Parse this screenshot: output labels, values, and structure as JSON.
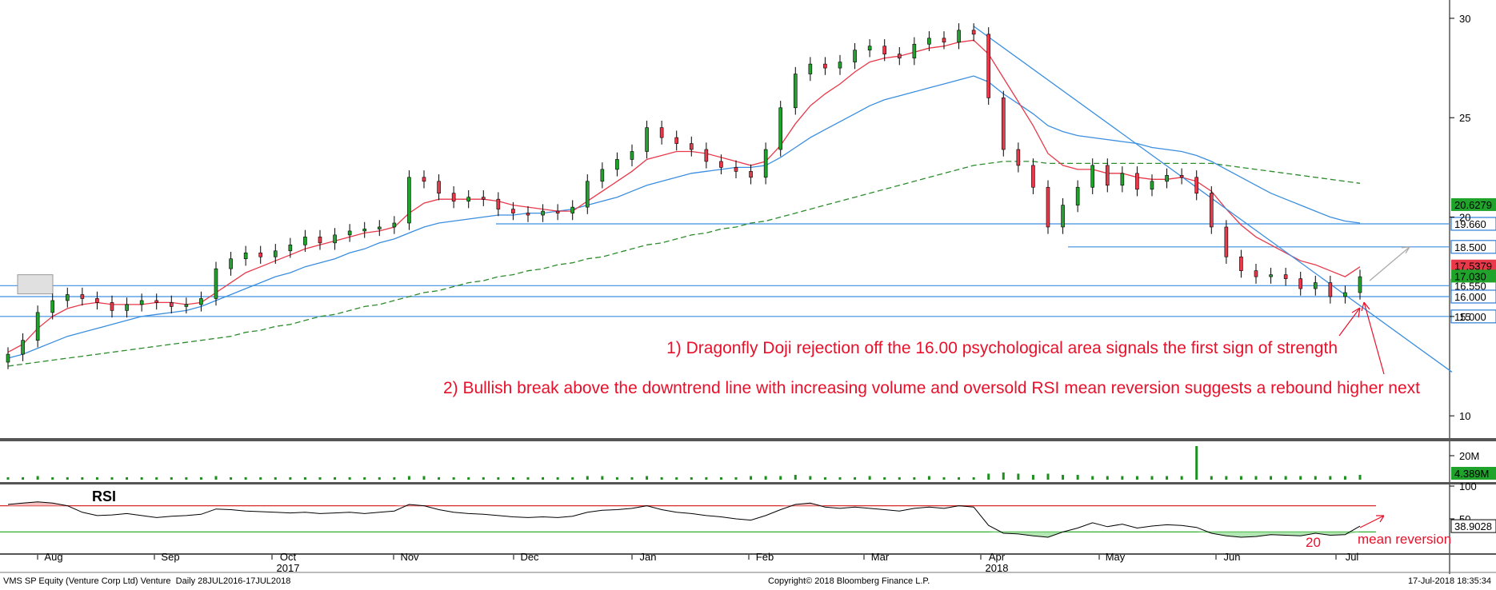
{
  "chart_data": {
    "type": "candlestick",
    "instrument": "VMS SP Equity (Venture Corp Ltd) Venture",
    "period_label": "Daily 28JUL2016-17JUL2018",
    "copyright": "Copyright© 2018 Bloomberg Finance L.P.",
    "timestamp": "17-Jul-2018 18:35:34",
    "x_labels": [
      "Aug",
      "Sep",
      "Oct",
      "Nov",
      "Dec",
      "Jan",
      "Feb",
      "Mar",
      "Apr",
      "May",
      "Jun",
      "Jul"
    ],
    "year_labels": [
      {
        "label": "2017",
        "month": "Oct"
      },
      {
        "label": "2018",
        "month": "Apr"
      }
    ],
    "price_axis": {
      "ticks": [
        10,
        15,
        20,
        25,
        30
      ],
      "range": [
        9,
        30.6
      ]
    },
    "price_close": [
      13.1,
      13.8,
      15.2,
      15.8,
      16.1,
      15.9,
      15.7,
      15.3,
      15.6,
      15.8,
      15.7,
      15.5,
      15.6,
      15.9,
      17.4,
      17.9,
      18.2,
      18.0,
      18.3,
      18.6,
      19.0,
      18.7,
      19.1,
      19.3,
      19.4,
      19.5,
      19.7,
      22.0,
      21.8,
      21.2,
      20.8,
      21.0,
      20.9,
      20.4,
      20.2,
      20.1,
      20.3,
      20.2,
      20.5,
      21.8,
      22.4,
      22.9,
      23.3,
      24.5,
      24.0,
      23.7,
      23.4,
      22.8,
      22.5,
      22.3,
      22.0,
      23.4,
      25.5,
      27.2,
      27.7,
      27.5,
      27.8,
      28.4,
      28.6,
      28.2,
      28.0,
      28.7,
      29.0,
      28.8,
      29.4,
      29.2,
      26.0,
      23.4,
      22.6,
      21.5,
      19.5,
      20.6,
      21.5,
      22.6,
      21.6,
      22.2,
      21.4,
      21.8,
      22.1,
      22.0,
      21.2,
      19.5,
      18.0,
      17.3,
      17.0,
      17.1,
      16.9,
      16.4,
      16.7,
      16.0,
      16.2,
      17.0
    ],
    "price_open": [
      12.7,
      13.1,
      13.8,
      15.2,
      15.8,
      16.1,
      15.9,
      15.7,
      15.3,
      15.6,
      15.8,
      15.7,
      15.5,
      15.6,
      15.9,
      17.4,
      17.9,
      18.2,
      18.0,
      18.3,
      18.6,
      19.0,
      18.7,
      19.1,
      19.3,
      19.4,
      19.5,
      19.7,
      22.0,
      21.8,
      21.2,
      20.8,
      21.0,
      20.9,
      20.4,
      20.2,
      20.1,
      20.3,
      20.2,
      20.5,
      21.8,
      22.4,
      22.9,
      23.3,
      24.5,
      24.0,
      23.7,
      23.4,
      22.8,
      22.5,
      22.3,
      22.0,
      23.4,
      25.5,
      27.2,
      27.7,
      27.5,
      27.8,
      28.4,
      28.6,
      28.2,
      28.0,
      28.7,
      29.0,
      28.8,
      29.4,
      29.2,
      26.0,
      23.4,
      22.6,
      21.5,
      19.5,
      20.6,
      21.5,
      22.6,
      21.6,
      22.2,
      21.4,
      21.8,
      22.1,
      22.0,
      21.2,
      19.5,
      18.0,
      17.3,
      17.0,
      17.1,
      16.9,
      16.4,
      16.7,
      16.0,
      16.2
    ],
    "sma_fast": [
      13.2,
      13.6,
      14.4,
      15.0,
      15.4,
      15.6,
      15.7,
      15.6,
      15.6,
      15.6,
      15.7,
      15.7,
      15.6,
      15.7,
      16.2,
      16.7,
      17.2,
      17.5,
      17.8,
      18.1,
      18.4,
      18.6,
      18.8,
      19.0,
      19.2,
      19.3,
      19.5,
      20.2,
      20.7,
      20.9,
      20.9,
      20.9,
      20.9,
      20.8,
      20.6,
      20.5,
      20.4,
      20.3,
      20.3,
      20.8,
      21.3,
      21.8,
      22.3,
      22.9,
      23.1,
      23.3,
      23.3,
      23.2,
      23.0,
      22.8,
      22.6,
      22.8,
      23.6,
      24.7,
      25.6,
      26.2,
      26.7,
      27.3,
      27.8,
      28.0,
      28.1,
      28.3,
      28.5,
      28.6,
      28.8,
      28.9,
      28.2,
      27.0,
      25.8,
      24.6,
      23.2,
      22.6,
      22.4,
      22.4,
      22.2,
      22.2,
      22.0,
      21.9,
      21.9,
      22.0,
      21.8,
      21.3,
      20.4,
      19.6,
      19.0,
      18.6,
      18.2,
      17.8,
      17.6,
      17.3,
      17.0,
      17.5
    ],
    "sma_mid": [
      12.9,
      13.1,
      13.4,
      13.7,
      14.0,
      14.2,
      14.4,
      14.6,
      14.8,
      15.0,
      15.1,
      15.2,
      15.3,
      15.5,
      15.8,
      16.1,
      16.4,
      16.7,
      17.0,
      17.2,
      17.5,
      17.7,
      17.9,
      18.2,
      18.4,
      18.7,
      18.9,
      19.2,
      19.5,
      19.7,
      19.8,
      19.9,
      20.0,
      20.1,
      20.1,
      20.2,
      20.2,
      20.3,
      20.4,
      20.6,
      20.8,
      21.0,
      21.3,
      21.6,
      21.8,
      22.0,
      22.2,
      22.3,
      22.4,
      22.5,
      22.5,
      22.6,
      23.0,
      23.5,
      24.0,
      24.4,
      24.8,
      25.2,
      25.6,
      25.9,
      26.1,
      26.3,
      26.5,
      26.7,
      26.9,
      27.1,
      26.8,
      26.2,
      25.7,
      25.2,
      24.6,
      24.3,
      24.1,
      24.0,
      23.9,
      23.8,
      23.7,
      23.5,
      23.4,
      23.3,
      23.1,
      22.8,
      22.4,
      22.0,
      21.6,
      21.2,
      20.9,
      20.6,
      20.3,
      20.0,
      19.8,
      19.7
    ],
    "sma_slow": [
      12.5,
      12.6,
      12.7,
      12.8,
      12.9,
      13.0,
      13.1,
      13.2,
      13.3,
      13.4,
      13.5,
      13.6,
      13.7,
      13.8,
      13.9,
      14.0,
      14.2,
      14.3,
      14.5,
      14.6,
      14.8,
      15.0,
      15.1,
      15.3,
      15.5,
      15.6,
      15.8,
      16.0,
      16.2,
      16.3,
      16.5,
      16.7,
      16.8,
      17.0,
      17.1,
      17.3,
      17.4,
      17.6,
      17.7,
      17.9,
      18.0,
      18.2,
      18.4,
      18.6,
      18.7,
      18.9,
      19.1,
      19.2,
      19.4,
      19.5,
      19.7,
      19.8,
      20.0,
      20.2,
      20.4,
      20.6,
      20.8,
      21.0,
      21.2,
      21.4,
      21.6,
      21.8,
      22.0,
      22.2,
      22.4,
      22.6,
      22.7,
      22.8,
      22.8,
      22.8,
      22.7,
      22.7,
      22.7,
      22.7,
      22.7,
      22.7,
      22.7,
      22.7,
      22.7,
      22.7,
      22.7,
      22.7,
      22.6,
      22.5,
      22.4,
      22.3,
      22.2,
      22.1,
      22.0,
      21.9,
      21.8,
      21.7
    ],
    "horizontal_levels": [
      {
        "value": 19.66,
        "label": "19.660"
      },
      {
        "value": 18.5,
        "label": "18.500"
      },
      {
        "value": 16.55,
        "label": "16.550"
      },
      {
        "value": 16.0,
        "label": "16.000"
      },
      {
        "value": 15.0,
        "label": "15.000"
      }
    ],
    "price_tags": [
      {
        "value": 20.6279,
        "label": "20.6279",
        "color": "#1fa32b"
      },
      {
        "value": 17.5379,
        "label": "17.5379",
        "color": "#e8394a"
      },
      {
        "value": 17.03,
        "label": "17.030",
        "color": "#1fa32b"
      }
    ],
    "volume": {
      "axis_ticks": [
        {
          "value": 20,
          "label": "20M"
        }
      ],
      "last_label": "4.389M",
      "values": [
        2,
        2,
        3,
        2,
        2,
        2,
        2,
        2,
        2,
        2,
        2,
        2,
        2,
        2,
        3,
        2,
        2,
        2,
        2,
        2,
        2,
        2,
        2,
        2,
        2,
        2,
        2,
        3,
        3,
        2,
        2,
        2,
        2,
        2,
        2,
        2,
        2,
        2,
        2,
        3,
        3,
        2,
        2,
        3,
        2,
        2,
        2,
        2,
        2,
        2,
        3,
        3,
        3,
        4,
        3,
        2,
        2,
        2,
        3,
        2,
        2,
        2,
        3,
        2,
        2,
        2,
        5,
        6,
        5,
        4,
        5,
        4,
        4,
        3,
        3,
        3,
        3,
        3,
        3,
        3,
        28,
        3,
        3,
        3,
        3,
        3,
        3,
        3,
        3,
        3,
        3,
        4
      ]
    },
    "rsi": {
      "title": "RSI",
      "axis_ticks": [
        100,
        50
      ],
      "overbought": 70,
      "oversold": 30,
      "last_label": "38.9028",
      "values": [
        72,
        74,
        76,
        74,
        70,
        60,
        55,
        56,
        58,
        55,
        52,
        54,
        55,
        57,
        65,
        64,
        62,
        61,
        60,
        59,
        60,
        58,
        59,
        60,
        58,
        60,
        62,
        72,
        70,
        64,
        60,
        58,
        57,
        55,
        53,
        52,
        53,
        52,
        54,
        60,
        63,
        64,
        66,
        70,
        64,
        60,
        58,
        55,
        53,
        50,
        48,
        55,
        64,
        72,
        74,
        68,
        66,
        68,
        66,
        64,
        62,
        66,
        68,
        66,
        70,
        68,
        40,
        28,
        27,
        24,
        22,
        30,
        36,
        44,
        38,
        42,
        36,
        39,
        41,
        40,
        37,
        28,
        24,
        22,
        23,
        26,
        25,
        24,
        28,
        25,
        26,
        38.9
      ],
      "annotation_number": "20"
    },
    "annotations": [
      "1) Dragonfly Doji rejection off the 16.00 psychological area signals the first sign of strength",
      "2) Bullish break above the downtrend line with increasing volume and oversold RSI mean reversion suggests a rebound higher next",
      "mean reversion"
    ]
  }
}
